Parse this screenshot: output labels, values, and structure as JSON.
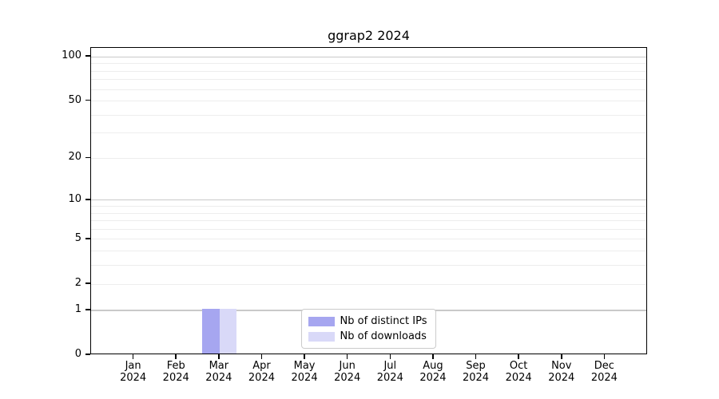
{
  "chart_data": {
    "type": "bar",
    "title": "ggrap2 2024",
    "x_months": [
      "Jan",
      "Feb",
      "Mar",
      "Apr",
      "May",
      "Jun",
      "Jul",
      "Aug",
      "Sep",
      "Oct",
      "Nov",
      "Dec"
    ],
    "x_year": "2024",
    "series": [
      {
        "name": "Nb of distinct IPs",
        "color": "#a6a6f0",
        "values": [
          0,
          0,
          1,
          0,
          0,
          0,
          0,
          0,
          0,
          0,
          0,
          0
        ]
      },
      {
        "name": "Nb of downloads",
        "color": "#d9d9f8",
        "values": [
          0,
          0,
          1,
          0,
          0,
          0,
          0,
          0,
          0,
          0,
          0,
          0
        ]
      }
    ],
    "yscale": "log1p",
    "ylim": [
      0,
      115
    ],
    "yticks": [
      0,
      1,
      2,
      5,
      10,
      20,
      50,
      100
    ],
    "grid_major": [
      1,
      10,
      100
    ],
    "grid_minor": [
      2,
      3,
      4,
      5,
      6,
      7,
      8,
      9,
      20,
      30,
      40,
      50,
      60,
      70,
      80,
      90
    ],
    "legend_position": "inside-bottom-center",
    "grid": "horizontal"
  }
}
